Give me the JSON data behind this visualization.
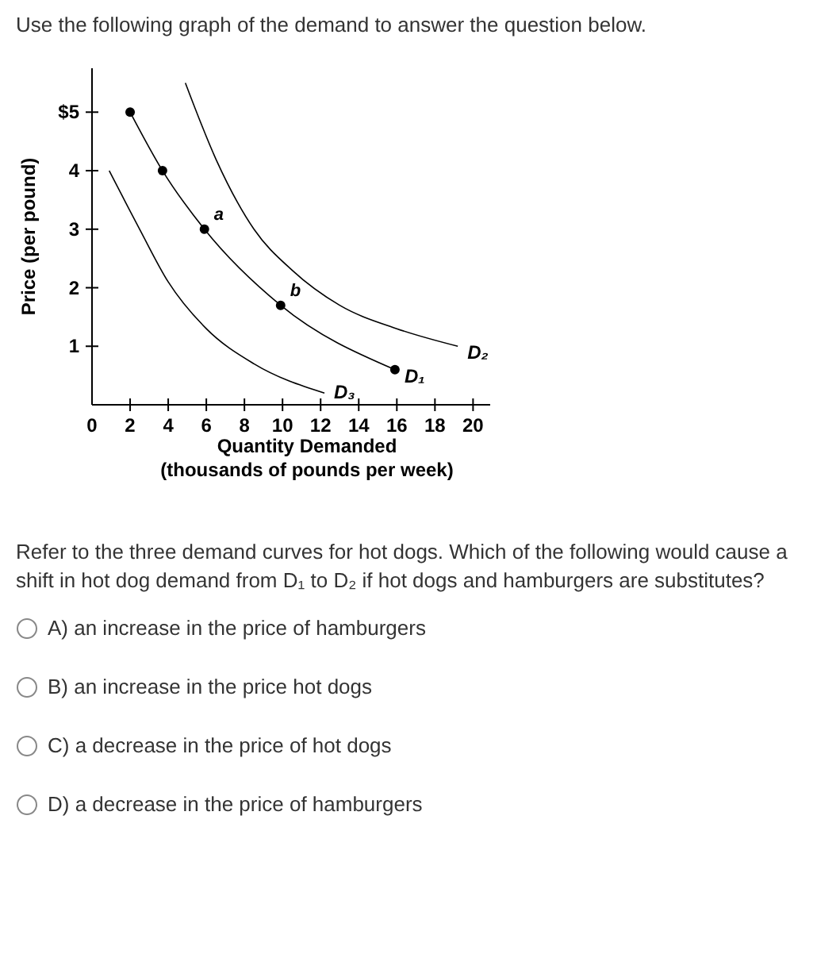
{
  "chart_data": {
    "type": "line",
    "title": "Use the following graph of the demand to answer the question below.",
    "xlabel": "Quantity Demanded\n(thousands of pounds per week)",
    "ylabel": "Price (per pound)",
    "series": [
      {
        "name": "D₂",
        "color": "#000000",
        "marker": "none",
        "x": [
          4.9,
          6.5,
          8.5,
          10.5,
          13,
          16,
          19.2
        ],
        "values": [
          5.5,
          4.2,
          3.0,
          2.3,
          1.7,
          1.3,
          1.0
        ]
      },
      {
        "name": "D₁",
        "color": "#000000",
        "marker": "circle",
        "x": [
          2,
          3.7,
          5.9,
          9.9,
          15.9
        ],
        "values": [
          5,
          4,
          3,
          1.7,
          0.6
        ]
      },
      {
        "name": "D₃",
        "color": "#000000",
        "marker": "none",
        "x": [
          0.9,
          2.5,
          4,
          6,
          8.5,
          12.2
        ],
        "values": [
          4.0,
          3.0,
          2.1,
          1.3,
          0.7,
          0.2
        ]
      }
    ],
    "xlim": [
      0,
      20.9
    ],
    "ylim": [
      0,
      5.75
    ],
    "xticks": [
      {
        "value": 0,
        "label": "0"
      },
      2,
      4,
      6,
      8,
      10,
      12,
      14,
      16,
      18,
      20
    ],
    "yticks": [
      1,
      2,
      3,
      4,
      {
        "value": 5,
        "label": "$5"
      }
    ],
    "grid": false,
    "legend": false,
    "annotations": [
      {
        "text": "a",
        "x": 5.9,
        "y": 3
      },
      {
        "text": "b",
        "x": 9.9,
        "y": 1.7
      },
      "Refer to the three demand curves for hot dogs. Which of the following would cause a shift in hot dog demand from D₁ to D₂ if hot dogs and hamburgers are substitutes?",
      "A) an increase in the price of hamburgers",
      "B) an increase in the price hot dogs",
      "C) a decrease in the price of hot dogs",
      "D) a decrease in the price of hamburgers"
    ]
  }
}
